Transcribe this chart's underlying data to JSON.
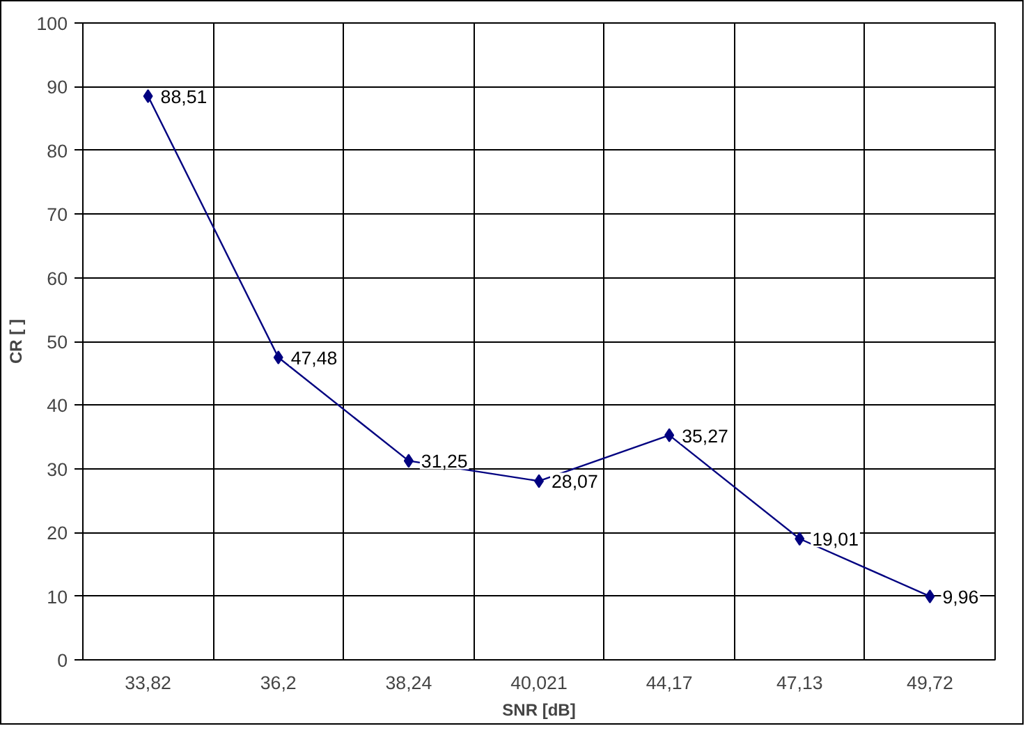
{
  "chart_data": {
    "type": "line",
    "xlabel": "SNR [dB]",
    "ylabel": "CR [ ]",
    "categories": [
      "33,82",
      "36,2",
      "38,24",
      "40,021",
      "44,17",
      "47,13",
      "49,72"
    ],
    "series": [
      {
        "color": "#000080",
        "values": [
          88.51,
          47.48,
          31.25,
          28.07,
          35.27,
          19.01,
          9.96
        ],
        "value_labels": [
          "88,51",
          "47,48",
          "31,25",
          "28,07",
          "35,27",
          "19,01",
          "9,96"
        ]
      }
    ],
    "ylim": [
      0,
      100
    ],
    "yticks": [
      0,
      10,
      20,
      30,
      40,
      50,
      60,
      70,
      80,
      90,
      100
    ],
    "grid": true,
    "marker": "diamond",
    "line_style": "solid"
  }
}
